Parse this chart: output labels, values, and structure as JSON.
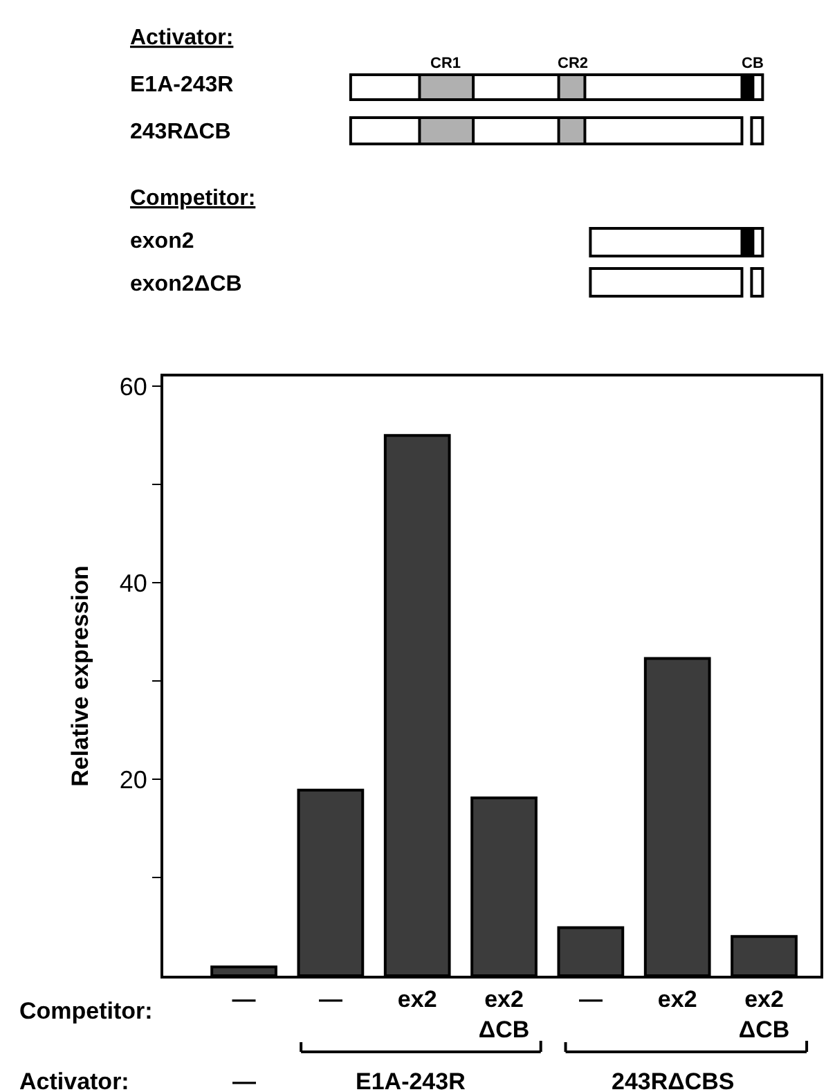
{
  "chart_data": {
    "type": "bar",
    "ylabel": "Relative expression",
    "categories": [
      "—",
      "—",
      "ex2",
      "ex2\nΔCB",
      "—",
      "ex2",
      "ex2\nΔCB"
    ],
    "values": [
      0.9,
      18.9,
      55,
      18.1,
      4.9,
      32.3,
      4.0
    ],
    "color": "#3c3c3c",
    "ylim": [
      0,
      61
    ],
    "yticks": [
      {
        "value": 10,
        "label": null
      },
      20,
      {
        "value": 30,
        "label": null
      },
      40,
      {
        "value": 50,
        "label": null
      },
      60
    ],
    "legend": false,
    "annotations": [
      "Activator:",
      "E1A-243R",
      "243RΔCB",
      "CR1",
      "CR2",
      "CB",
      "Competitor:",
      "exon2",
      "exon2ΔCB",
      "Competitor:",
      "Activator:",
      "—",
      "E1A-243R",
      "243RΔCBS"
    ]
  }
}
